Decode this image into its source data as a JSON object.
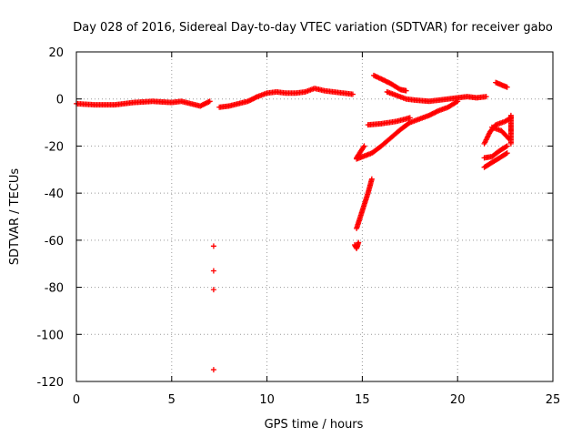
{
  "chart_data": {
    "type": "scatter",
    "title": "Day 028 of 2016, Sidereal Day-to-day VTEC variation (SDTVAR) for receiver gabo",
    "xlabel": "GPS time / hours",
    "ylabel": "SDTVAR / TECUs",
    "xlim": [
      0,
      25
    ],
    "ylim": [
      -120,
      20
    ],
    "xticks": [
      0,
      5,
      10,
      15,
      20,
      25
    ],
    "yticks": [
      20,
      0,
      -20,
      -40,
      -60,
      -80,
      -100,
      -120
    ],
    "grid": true,
    "marker": "+",
    "series": [
      {
        "name": "SDTVAR",
        "color": "#ff0000",
        "segments": [
          [
            [
              0,
              -2
            ],
            [
              1,
              -2.5
            ],
            [
              2,
              -2.5
            ],
            [
              3,
              -1.5
            ],
            [
              4,
              -1
            ],
            [
              5,
              -1.5
            ],
            [
              5.5,
              -1
            ],
            [
              6,
              -2
            ],
            [
              6.5,
              -3
            ],
            [
              7,
              -1
            ]
          ],
          [
            [
              7.5,
              -3.5
            ],
            [
              8,
              -3
            ],
            [
              8.5,
              -2
            ],
            [
              9,
              -1
            ],
            [
              9.5,
              1
            ],
            [
              10,
              2.5
            ],
            [
              10.5,
              3
            ],
            [
              11,
              2.5
            ],
            [
              11.5,
              2.5
            ],
            [
              12,
              3
            ],
            [
              12.5,
              4.5
            ],
            [
              13,
              3.5
            ],
            [
              13.5,
              3
            ],
            [
              14,
              2.5
            ],
            [
              14.5,
              2
            ]
          ],
          [
            [
              14.6,
              -62
            ],
            [
              14.7,
              -63.5
            ],
            [
              14.8,
              -61
            ]
          ],
          [
            [
              14.7,
              -55
            ],
            [
              14.9,
              -50
            ],
            [
              15.1,
              -45
            ],
            [
              15.3,
              -40
            ],
            [
              15.5,
              -34
            ]
          ],
          [
            [
              14.7,
              -25
            ],
            [
              14.9,
              -22.5
            ],
            [
              15.1,
              -20
            ]
          ],
          [
            [
              14.7,
              -25.5
            ],
            [
              15.5,
              -23
            ],
            [
              16,
              -20
            ],
            [
              16.5,
              -16.5
            ],
            [
              17,
              -13
            ],
            [
              17.5,
              -10
            ],
            [
              18,
              -8.5
            ],
            [
              18.5,
              -7
            ],
            [
              19,
              -5
            ],
            [
              19.5,
              -3.5
            ],
            [
              20,
              -1
            ]
          ],
          [
            [
              15.3,
              -11
            ],
            [
              16,
              -10.5
            ],
            [
              16.8,
              -9.5
            ],
            [
              17.5,
              -8
            ]
          ],
          [
            [
              15.6,
              10
            ],
            [
              16,
              8.5
            ],
            [
              16.5,
              6.5
            ],
            [
              17,
              4
            ],
            [
              17.3,
              3.5
            ]
          ],
          [
            [
              16.3,
              3
            ],
            [
              16.8,
              1.5
            ],
            [
              17.3,
              0
            ],
            [
              17.8,
              -0.5
            ],
            [
              18.5,
              -1
            ],
            [
              19,
              -0.5
            ],
            [
              19.5,
              0
            ],
            [
              20,
              0.5
            ],
            [
              20.5,
              1
            ],
            [
              21,
              0.5
            ],
            [
              21.5,
              1
            ]
          ],
          [
            [
              22,
              7
            ],
            [
              22.3,
              6
            ],
            [
              22.6,
              5
            ]
          ],
          [
            [
              21.4,
              -19
            ],
            [
              21.7,
              -14
            ],
            [
              22,
              -11
            ],
            [
              22.5,
              -9.5
            ],
            [
              22.8,
              -8
            ]
          ],
          [
            [
              21.8,
              -12
            ],
            [
              22.3,
              -13.5
            ],
            [
              22.7,
              -17
            ]
          ],
          [
            [
              21.4,
              -25
            ],
            [
              21.8,
              -24.5
            ],
            [
              22.2,
              -22
            ],
            [
              22.6,
              -20
            ]
          ],
          [
            [
              21.4,
              -29
            ],
            [
              21.8,
              -27
            ],
            [
              22.2,
              -25
            ],
            [
              22.6,
              -23
            ]
          ],
          [
            [
              22.8,
              -7
            ],
            [
              22.8,
              -12
            ],
            [
              22.8,
              -14
            ],
            [
              22.8,
              -19
            ]
          ]
        ],
        "isolated_points": [
          [
            7.2,
            -62.5
          ],
          [
            7.2,
            -73
          ],
          [
            7.2,
            -81
          ],
          [
            7.2,
            -115
          ]
        ]
      }
    ]
  }
}
